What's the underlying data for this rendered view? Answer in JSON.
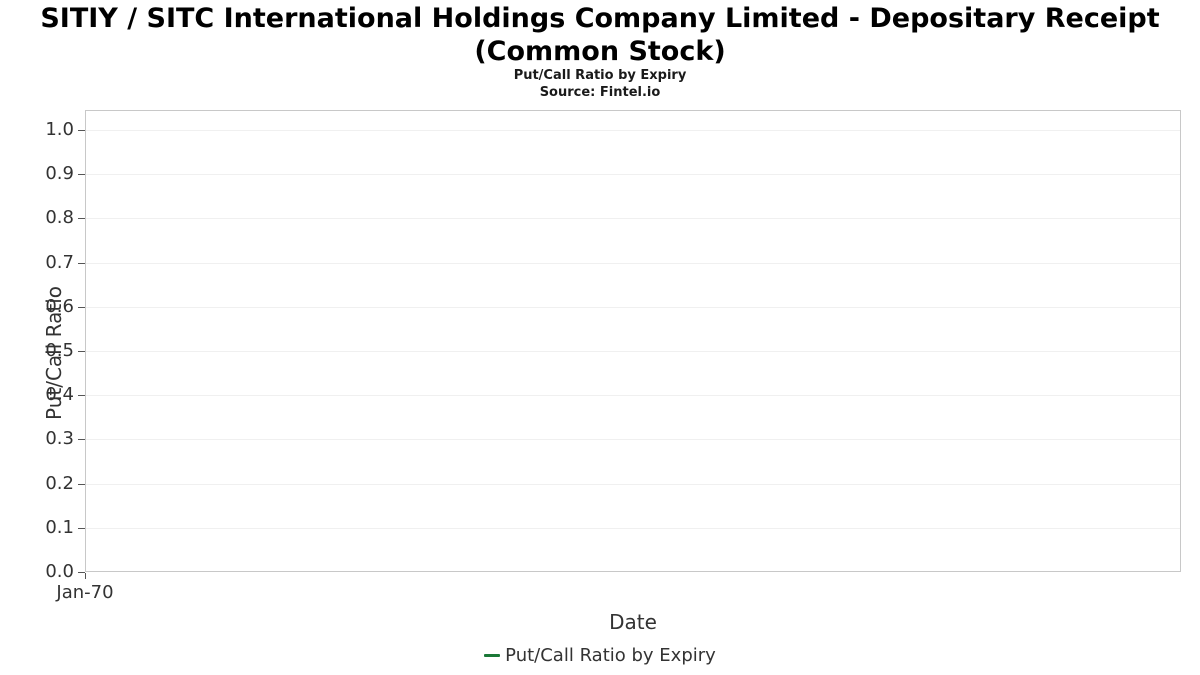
{
  "chart_data": {
    "type": "line",
    "title": "SITIY / SITC International Holdings Company Limited - Depositary Receipt (Common Stock)",
    "subtitle": "Put/Call Ratio by Expiry",
    "source": "Source: Fintel.io",
    "xlabel": "Date",
    "ylabel": "Put/Call Ratio",
    "x_ticks": [
      "Jan-70"
    ],
    "y_ticks": [
      "1.0",
      "0.9",
      "0.8",
      "0.7",
      "0.6",
      "0.5",
      "0.4",
      "0.3",
      "0.2",
      "0.1",
      "0.0"
    ],
    "y_tick_values": [
      1.0,
      0.9,
      0.8,
      0.7,
      0.6,
      0.5,
      0.4,
      0.3,
      0.2,
      0.1,
      0.0
    ],
    "ylim": [
      0.0,
      1.045
    ],
    "grid": true,
    "legend_position": "bottom-center",
    "legend": [
      "Put/Call Ratio by Expiry"
    ],
    "series": [
      {
        "name": "Put/Call Ratio by Expiry",
        "color": "#1b7837",
        "x": [],
        "values": []
      }
    ]
  }
}
